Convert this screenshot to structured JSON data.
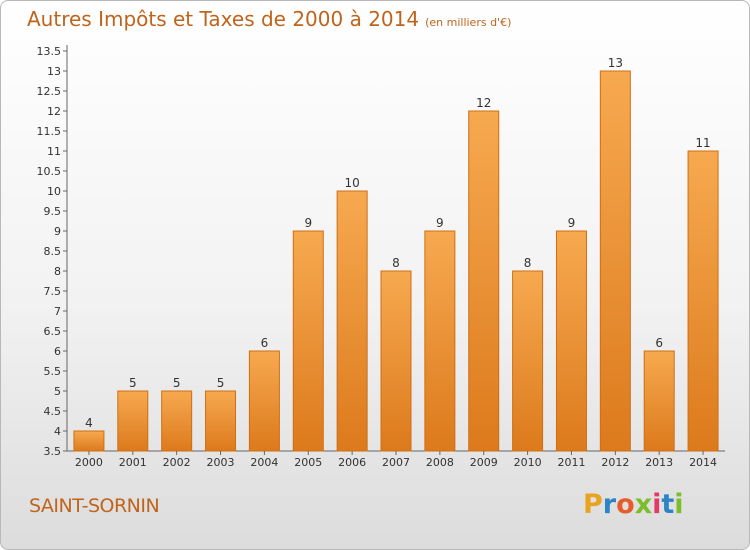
{
  "header": {
    "title": "Autres Impôts et Taxes de 2000 à 2014",
    "unit": "(en milliers d'€)"
  },
  "footer": {
    "city": "SAINT-SORNIN",
    "brand": [
      "P",
      "r",
      "o",
      "x",
      "i",
      "t",
      "i"
    ],
    "brand_colors": [
      "#e8a320",
      "#2a84c6",
      "#e65c2a",
      "#7bbd2a",
      "#e23c64",
      "#2a84c6",
      "#7bbd2a"
    ]
  },
  "colors": {
    "bar_light": "#f7a950",
    "bar_dark": "#dc7a1c",
    "bar_edge": "#cf6e14",
    "axis_text": "#333333",
    "grid": "#cfcfcf"
  },
  "chart_data": {
    "type": "bar",
    "categories": [
      "2000",
      "2001",
      "2002",
      "2003",
      "2004",
      "2005",
      "2006",
      "2007",
      "2008",
      "2009",
      "2010",
      "2011",
      "2012",
      "2013",
      "2014"
    ],
    "values": [
      4,
      5,
      5,
      5,
      6,
      9,
      10,
      8,
      9,
      12,
      8,
      9,
      13,
      6,
      11
    ],
    "data_labels": [
      "4",
      "5",
      "5",
      "5",
      "6",
      "9",
      "10",
      "8",
      "9",
      "12",
      "8",
      "9",
      "13",
      "6",
      "11"
    ],
    "yticks": [
      "3.5",
      "4",
      "4.5",
      "5",
      "5.5",
      "6",
      "6.5",
      "7",
      "7.5",
      "8",
      "8.5",
      "9",
      "9.5",
      "10",
      "10.5",
      "11",
      "11.5",
      "12",
      "12.5",
      "13",
      "13.5"
    ],
    "ylim": [
      3.5,
      13.5
    ],
    "title": "Autres Impôts et Taxes de 2000 à 2014",
    "xlabel": "",
    "ylabel": "",
    "grid": false,
    "legend": "none"
  }
}
